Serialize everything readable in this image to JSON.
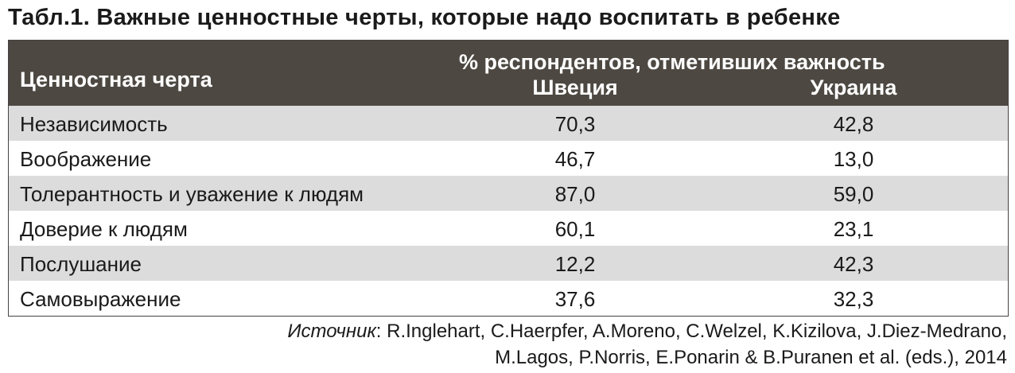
{
  "title": "Табл.1. Важные ценностные черты, которые надо воспитать в ребенке",
  "table": {
    "header": {
      "label": "Ценностная черта",
      "group": "% респондентов, отметивших важность",
      "columns": [
        "Швеция",
        "Украина"
      ]
    },
    "rows": [
      [
        "Независимость",
        "70,3",
        "42,8"
      ],
      [
        "Воображение",
        "46,7",
        "13,0"
      ],
      [
        "Толерантность и уважение к людям",
        "87,0",
        "59,0"
      ],
      [
        "Доверие к людям",
        "60,1",
        "23,1"
      ],
      [
        "Послушание",
        "12,2",
        "42,3"
      ],
      [
        "Самовыражение",
        "37,6",
        "32,3"
      ]
    ]
  },
  "source": {
    "label": "Источник",
    "lines": [
      ": R.Inglehart, C.Haerpfer, A.Moreno, C.Welzel, K.Kizilova, J.Diez-Medrano,",
      "M.Lagos, P.Norris, E.Ponarin & B.Puranen et al. (eds.), 2014"
    ]
  }
}
